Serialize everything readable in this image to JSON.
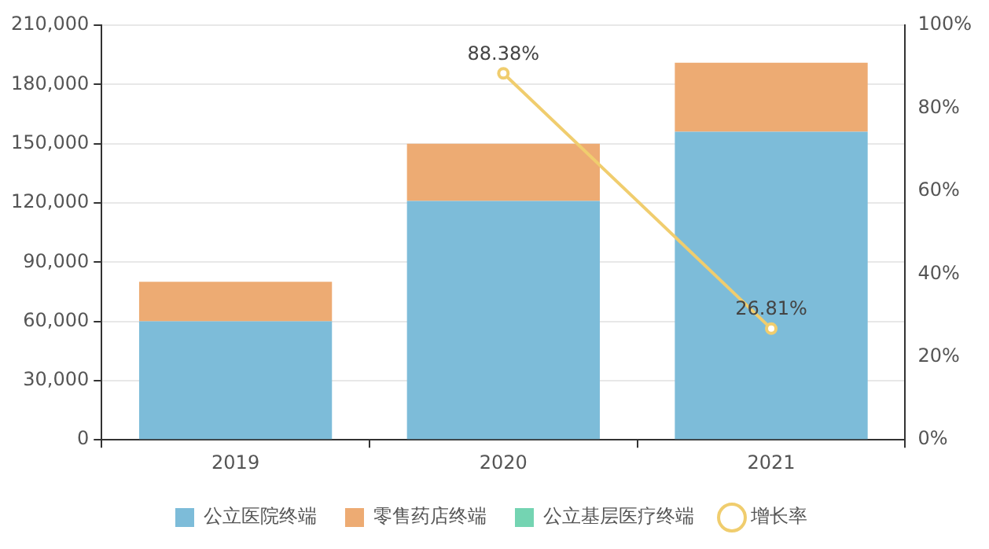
{
  "chart_data": {
    "type": "bar",
    "stacked": true,
    "categories": [
      "2019",
      "2020",
      "2021"
    ],
    "series": [
      {
        "name": "公立医院终端",
        "color": "#7dbcd9",
        "values": [
          60000,
          121000,
          156000
        ]
      },
      {
        "name": "零售药店终端",
        "color": "#edab73",
        "values": [
          20000,
          29000,
          35000
        ]
      },
      {
        "name": "公立基层医疗终端",
        "color": "#74d4b2",
        "values": [
          0,
          0,
          0
        ]
      },
      {
        "name": "增长率",
        "type": "line",
        "axis": "y2",
        "color": "#f0cd6e",
        "marker": "circle",
        "values": [
          null,
          88.38,
          26.81
        ],
        "value_labels": [
          null,
          "88.38%",
          "26.81%"
        ]
      }
    ],
    "ylim": [
      0,
      210000
    ],
    "yticks": [
      {
        "value": 0,
        "label": "0"
      },
      {
        "value": 30000,
        "label": "30,000"
      },
      {
        "value": 60000,
        "label": "60,000"
      },
      {
        "value": 90000,
        "label": "90,000"
      },
      {
        "value": 120000,
        "label": "120,000"
      },
      {
        "value": 150000,
        "label": "150,000"
      },
      {
        "value": 180000,
        "label": "180,000"
      },
      {
        "value": 210000,
        "label": "210,000"
      }
    ],
    "y2lim": [
      0,
      100
    ],
    "y2ticks": [
      {
        "value": 0,
        "label": "0%"
      },
      {
        "value": 20,
        "label": "20%"
      },
      {
        "value": 40,
        "label": "40%"
      },
      {
        "value": 60,
        "label": "60%"
      },
      {
        "value": 80,
        "label": "80%"
      },
      {
        "value": 100,
        "label": "100%"
      }
    ],
    "grid": "y",
    "legend": "bottom"
  }
}
